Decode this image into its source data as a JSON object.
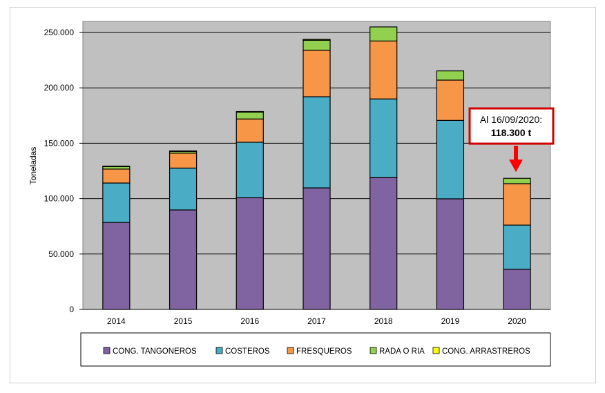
{
  "chart_data": {
    "type": "bar",
    "stacked": true,
    "title": "",
    "xlabel": "",
    "ylabel": "Toneladas",
    "ylim": [
      0,
      260000
    ],
    "yticks": [
      0,
      50000,
      100000,
      150000,
      200000,
      250000
    ],
    "ytick_labels": [
      "0",
      "50.000",
      "100.000",
      "150.000",
      "200.000",
      "250.000"
    ],
    "categories": [
      "2014",
      "2015",
      "2016",
      "2017",
      "2018",
      "2019",
      "2020"
    ],
    "series": [
      {
        "name": "CONG. TANGONEROS",
        "color": "#8064A2",
        "values": [
          78500,
          89800,
          101000,
          109700,
          119300,
          99800,
          36200
        ]
      },
      {
        "name": "COSTEROS",
        "color": "#4BACC6",
        "values": [
          35600,
          37800,
          49900,
          82300,
          70700,
          70800,
          39900
        ]
      },
      {
        "name": "FRESQUEROS",
        "color": "#F79646",
        "values": [
          12600,
          13500,
          21000,
          42000,
          52300,
          36400,
          37400
        ]
      },
      {
        "name": "RADA O RIA",
        "color": "#92D050",
        "values": [
          2200,
          1500,
          6400,
          9000,
          12700,
          8300,
          4800
        ]
      },
      {
        "name": "CONG. ARRASTREROS",
        "color": "#FFFF00",
        "values": [
          500,
          500,
          300,
          800,
          0,
          0,
          0
        ]
      }
    ],
    "grid": true,
    "legend_position": "bottom",
    "annotation": {
      "line1": "Al 16/09/2020:",
      "line2": "118.300 t",
      "target": "2020",
      "color": "#E00000"
    }
  }
}
